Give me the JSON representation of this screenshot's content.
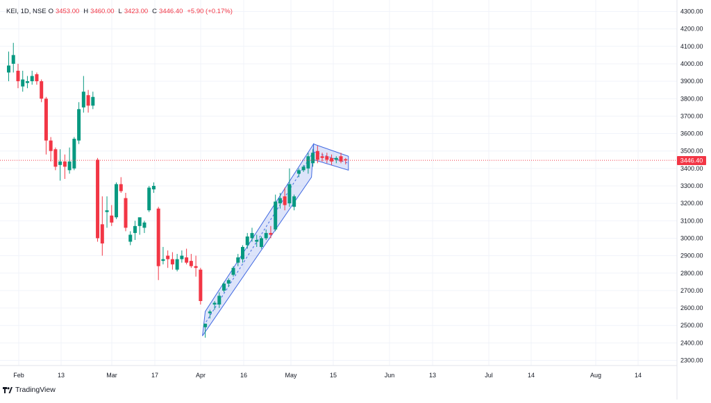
{
  "legend": {
    "symbol": "KEI, 1D, NSE",
    "open_label": "O",
    "open": "3453.00",
    "high_label": "H",
    "high": "3460.00",
    "low_label": "L",
    "low": "3423.00",
    "close_label": "C",
    "close": "3446.40",
    "change": "+5.90 (+0.17%)"
  },
  "last_price_label": "3446.40",
  "branding": "TradingView",
  "colors": {
    "up": "#089981",
    "down": "#f23645",
    "drawing": "#4169e1",
    "grid": "#f0f3fa"
  },
  "chart_data": {
    "type": "candlestick",
    "title": "KEI, 1D, NSE",
    "y_axis_ticks": [
      2300,
      2400,
      2500,
      2600,
      2700,
      2800,
      2900,
      3000,
      3100,
      3200,
      3300,
      3400,
      3500,
      3600,
      3700,
      3800,
      3900,
      4000,
      4100,
      4200,
      4300
    ],
    "ylim": [
      2250,
      4320
    ],
    "x_axis_labels": [
      "Feb",
      "13",
      "Mar",
      "17",
      "Apr",
      "16",
      "May",
      "15",
      "Jun",
      "13",
      "Jul",
      "14",
      "Aug",
      "14"
    ],
    "last_price": 3446.4,
    "candles": [
      {
        "o": 3950,
        "h": 4070,
        "l": 3900,
        "c": 3990
      },
      {
        "o": 4000,
        "h": 4120,
        "l": 3950,
        "c": 4050
      },
      {
        "o": 3960,
        "h": 4000,
        "l": 3860,
        "c": 3900
      },
      {
        "o": 3870,
        "h": 3960,
        "l": 3840,
        "c": 3910
      },
      {
        "o": 3890,
        "h": 3930,
        "l": 3860,
        "c": 3900
      },
      {
        "o": 3900,
        "h": 3960,
        "l": 3880,
        "c": 3930
      },
      {
        "o": 3940,
        "h": 3950,
        "l": 3880,
        "c": 3900
      },
      {
        "o": 3900,
        "h": 3910,
        "l": 3780,
        "c": 3800
      },
      {
        "o": 3800,
        "h": 3810,
        "l": 3480,
        "c": 3560
      },
      {
        "o": 3560,
        "h": 3580,
        "l": 3440,
        "c": 3500
      },
      {
        "o": 3510,
        "h": 3520,
        "l": 3390,
        "c": 3410
      },
      {
        "o": 3420,
        "h": 3510,
        "l": 3330,
        "c": 3440
      },
      {
        "o": 3440,
        "h": 3480,
        "l": 3340,
        "c": 3410
      },
      {
        "o": 3390,
        "h": 3520,
        "l": 3370,
        "c": 3440
      },
      {
        "o": 3400,
        "h": 3580,
        "l": 3390,
        "c": 3570
      },
      {
        "o": 3560,
        "h": 3780,
        "l": 3540,
        "c": 3740
      },
      {
        "o": 3750,
        "h": 3930,
        "l": 3720,
        "c": 3840
      },
      {
        "o": 3820,
        "h": 3850,
        "l": 3720,
        "c": 3760
      },
      {
        "o": 3760,
        "h": 3840,
        "l": 3740,
        "c": 3810
      },
      {
        "o": 3450,
        "h": 3460,
        "l": 2980,
        "c": 3000
      },
      {
        "o": 3080,
        "h": 3240,
        "l": 2900,
        "c": 2970
      },
      {
        "o": 3150,
        "h": 3240,
        "l": 3060,
        "c": 3160
      },
      {
        "o": 3130,
        "h": 3190,
        "l": 3070,
        "c": 3090
      },
      {
        "o": 3120,
        "h": 3320,
        "l": 3110,
        "c": 3310
      },
      {
        "o": 3310,
        "h": 3350,
        "l": 3260,
        "c": 3270
      },
      {
        "o": 3230,
        "h": 3260,
        "l": 3040,
        "c": 3060
      },
      {
        "o": 2980,
        "h": 3040,
        "l": 2960,
        "c": 3020
      },
      {
        "o": 3030,
        "h": 3100,
        "l": 2990,
        "c": 3070
      },
      {
        "o": 3070,
        "h": 3110,
        "l": 3020,
        "c": 3120
      },
      {
        "o": 3060,
        "h": 3100,
        "l": 3030,
        "c": 3090
      },
      {
        "o": 3160,
        "h": 3300,
        "l": 3150,
        "c": 3290
      },
      {
        "o": 3280,
        "h": 3320,
        "l": 3260,
        "c": 3300
      },
      {
        "o": 3170,
        "h": 3180,
        "l": 2760,
        "c": 2840
      },
      {
        "o": 2870,
        "h": 2950,
        "l": 2850,
        "c": 2880
      },
      {
        "o": 2900,
        "h": 2930,
        "l": 2830,
        "c": 2880
      },
      {
        "o": 2880,
        "h": 2920,
        "l": 2820,
        "c": 2850
      },
      {
        "o": 2820,
        "h": 2910,
        "l": 2810,
        "c": 2880
      },
      {
        "o": 2880,
        "h": 2930,
        "l": 2860,
        "c": 2900
      },
      {
        "o": 2890,
        "h": 2940,
        "l": 2850,
        "c": 2860
      },
      {
        "o": 2870,
        "h": 2910,
        "l": 2830,
        "c": 2840
      },
      {
        "o": 2840,
        "h": 2900,
        "l": 2780,
        "c": 2830
      },
      {
        "o": 2820,
        "h": 2830,
        "l": 2620,
        "c": 2640
      },
      {
        "o": 2490,
        "h": 2510,
        "l": 2430,
        "c": 2510
      },
      {
        "o": 2570,
        "h": 2590,
        "l": 2540,
        "c": 2580
      },
      {
        "o": 2620,
        "h": 2640,
        "l": 2590,
        "c": 2630
      },
      {
        "o": 2620,
        "h": 2690,
        "l": 2600,
        "c": 2670
      },
      {
        "o": 2700,
        "h": 2750,
        "l": 2690,
        "c": 2740
      },
      {
        "o": 2740,
        "h": 2770,
        "l": 2720,
        "c": 2760
      },
      {
        "o": 2790,
        "h": 2840,
        "l": 2780,
        "c": 2830
      },
      {
        "o": 2860,
        "h": 2910,
        "l": 2840,
        "c": 2890
      },
      {
        "o": 2880,
        "h": 2960,
        "l": 2860,
        "c": 2950
      },
      {
        "o": 2960,
        "h": 3030,
        "l": 2940,
        "c": 3010
      },
      {
        "o": 3000,
        "h": 3060,
        "l": 2980,
        "c": 3030
      },
      {
        "o": 2980,
        "h": 3020,
        "l": 2950,
        "c": 2990
      },
      {
        "o": 2950,
        "h": 3010,
        "l": 2940,
        "c": 3000
      },
      {
        "o": 3000,
        "h": 3050,
        "l": 2990,
        "c": 3030
      },
      {
        "o": 3030,
        "h": 3070,
        "l": 3000,
        "c": 3020
      },
      {
        "o": 3050,
        "h": 3250,
        "l": 3040,
        "c": 3210
      },
      {
        "o": 3200,
        "h": 3260,
        "l": 3170,
        "c": 3230
      },
      {
        "o": 3240,
        "h": 3290,
        "l": 3160,
        "c": 3190
      },
      {
        "o": 3200,
        "h": 3400,
        "l": 3180,
        "c": 3310
      },
      {
        "o": 3180,
        "h": 3250,
        "l": 3160,
        "c": 3240
      },
      {
        "o": 3370,
        "h": 3400,
        "l": 3350,
        "c": 3390
      },
      {
        "o": 3390,
        "h": 3420,
        "l": 3380,
        "c": 3410
      },
      {
        "o": 3400,
        "h": 3490,
        "l": 3370,
        "c": 3470
      },
      {
        "o": 3430,
        "h": 3510,
        "l": 3410,
        "c": 3490
      },
      {
        "o": 3500,
        "h": 3530,
        "l": 3430,
        "c": 3450
      },
      {
        "o": 3470,
        "h": 3490,
        "l": 3440,
        "c": 3460
      },
      {
        "o": 3470,
        "h": 3490,
        "l": 3430,
        "c": 3450
      },
      {
        "o": 3460,
        "h": 3480,
        "l": 3420,
        "c": 3440
      },
      {
        "o": 3450,
        "h": 3470,
        "l": 3430,
        "c": 3460
      },
      {
        "o": 3470,
        "h": 3490,
        "l": 3430,
        "c": 3440
      },
      {
        "o": 3453,
        "h": 3460,
        "l": 3423,
        "c": 3446.4
      }
    ],
    "drawings": [
      {
        "type": "parallel-channel",
        "from_price": 2500,
        "to_price": 3490
      },
      {
        "type": "flag-channel",
        "upper": [
          3540,
          3470
        ],
        "lower": [
          3450,
          3390
        ]
      }
    ]
  }
}
